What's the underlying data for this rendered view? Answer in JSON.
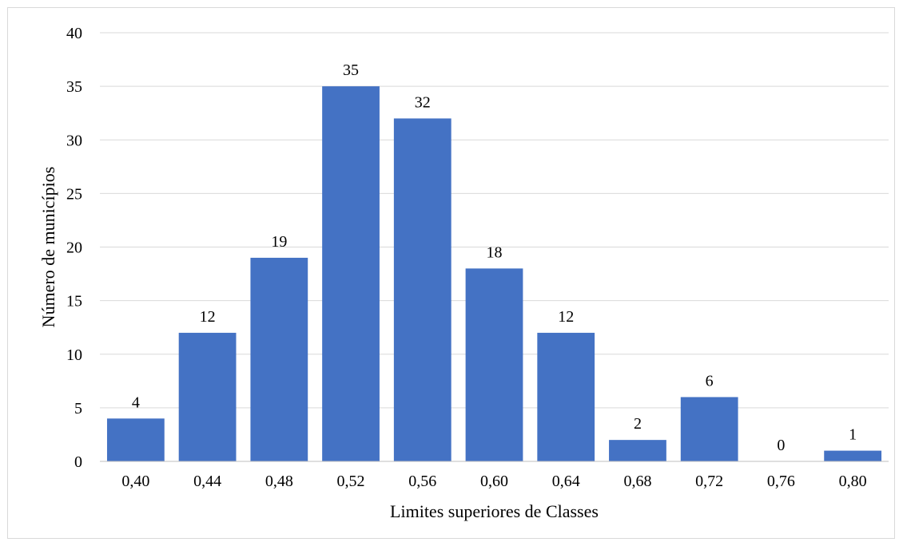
{
  "chart_data": {
    "type": "bar",
    "categories": [
      "0,40",
      "0,44",
      "0,48",
      "0,52",
      "0,56",
      "0,60",
      "0,64",
      "0,68",
      "0,72",
      "0,76",
      "0,80"
    ],
    "values": [
      4,
      12,
      19,
      35,
      32,
      18,
      12,
      2,
      6,
      0,
      1
    ],
    "title": "",
    "xlabel": "Limites superiores de Classes",
    "ylabel": "Número de municípios",
    "ylim": [
      0,
      40
    ],
    "yticks": [
      "0",
      "5",
      "10",
      "15",
      "20",
      "25",
      "30",
      "35",
      "40"
    ],
    "grid": true,
    "bar_color": "#4472c4",
    "data_labels": true
  }
}
